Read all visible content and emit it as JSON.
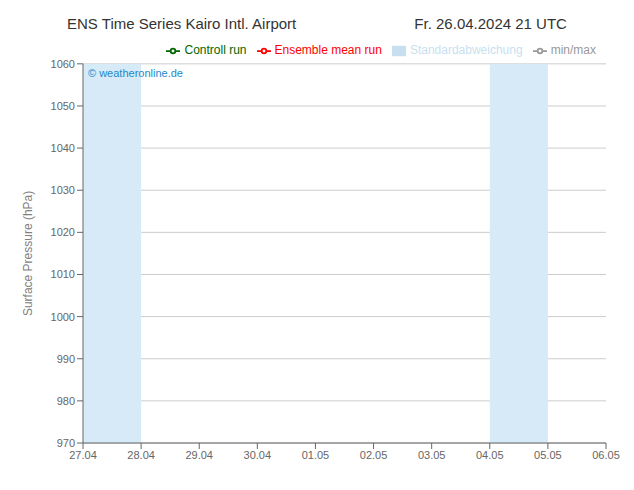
{
  "chart_data": {
    "type": "line",
    "title": "ENS Time Series Kairo Intl. Airport",
    "subtitle": "Fr. 26.04.2024 21 UTC",
    "ylabel": "Surface Pressure (hPa)",
    "categories": [
      "27.04",
      "28.04",
      "29.04",
      "30.04",
      "01.05",
      "02.05",
      "03.05",
      "04.05",
      "05.05",
      "06.05"
    ],
    "series": [
      {
        "name": "min/max",
        "type": "line",
        "color": "#999999",
        "values": [
          null,
          null,
          null,
          null,
          null,
          null,
          null,
          null,
          null,
          null
        ]
      },
      {
        "name": "Standardabweichung",
        "type": "area",
        "color": "#c8dff0",
        "values": [
          null,
          null,
          null,
          null,
          null,
          null,
          null,
          null,
          null,
          null
        ]
      },
      {
        "name": "Ensemble mean run",
        "type": "line",
        "color": "red",
        "values": [
          null,
          null,
          null,
          null,
          null,
          null,
          null,
          null,
          null,
          null
        ]
      },
      {
        "name": "Controll run",
        "type": "line",
        "color": "#006600",
        "values": [
          null,
          null,
          null,
          null,
          null,
          null,
          null,
          null,
          null,
          null
        ]
      }
    ],
    "ylim": [
      970,
      1060
    ],
    "yticks": [
      970,
      980,
      990,
      1000,
      1010,
      1020,
      1030,
      1040,
      1050,
      1060
    ],
    "grid": true,
    "legend": "upper right",
    "annotations": [
      {
        "text": "© weatheronline.de",
        "color": "#2288cc"
      }
    ],
    "bands": [
      {
        "from": "27.04",
        "to": "28.04",
        "color": "#d6eaf8"
      },
      {
        "from": "04.05",
        "to": "05.05",
        "color": "#d6eaf8"
      },
      {
        "from": "06.05",
        "to": "06.05",
        "color": "#d6eaf8"
      }
    ]
  }
}
